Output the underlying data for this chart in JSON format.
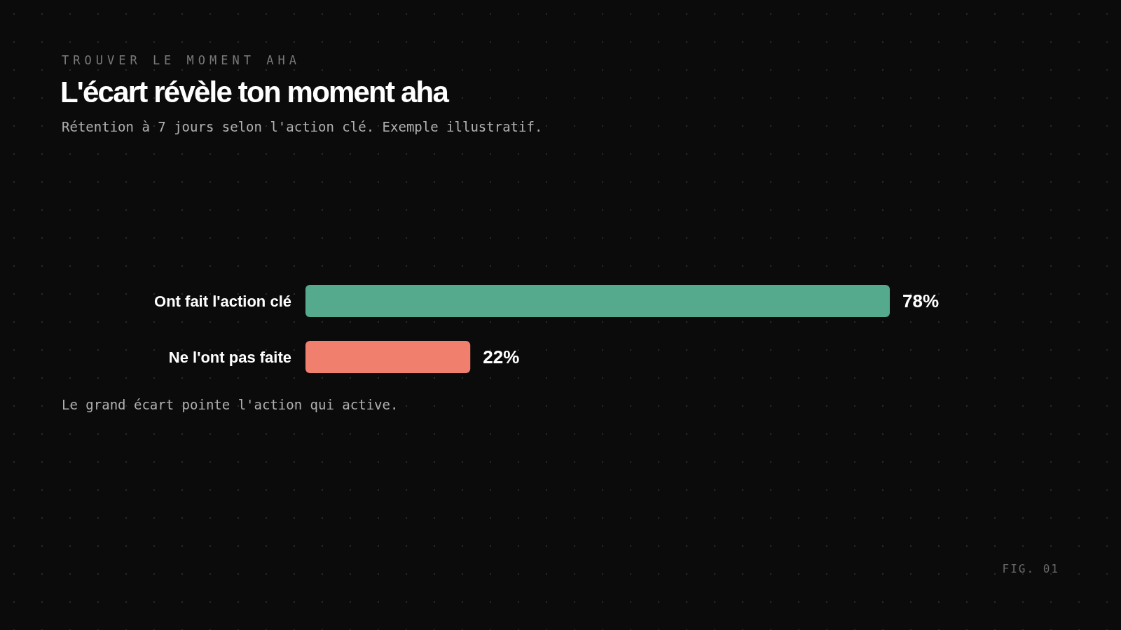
{
  "chart_data": {
    "type": "bar",
    "orientation": "horizontal",
    "title": "L'écart révèle ton moment aha",
    "subtitle": "Rétention à 7 jours selon l'action clé. Exemple illustratif.",
    "categories": [
      "Ont fait l'action clé",
      "Ne l'ont pas faite"
    ],
    "values": [
      78,
      22
    ],
    "colors": [
      "#55aa8e",
      "#f07f6e"
    ],
    "value_labels": [
      "78%",
      "22%"
    ],
    "annotations": [
      "TROUVER LE MOMENT AHA",
      "Le grand écart pointe l'action qui active.",
      "FIG. 01"
    ]
  }
}
